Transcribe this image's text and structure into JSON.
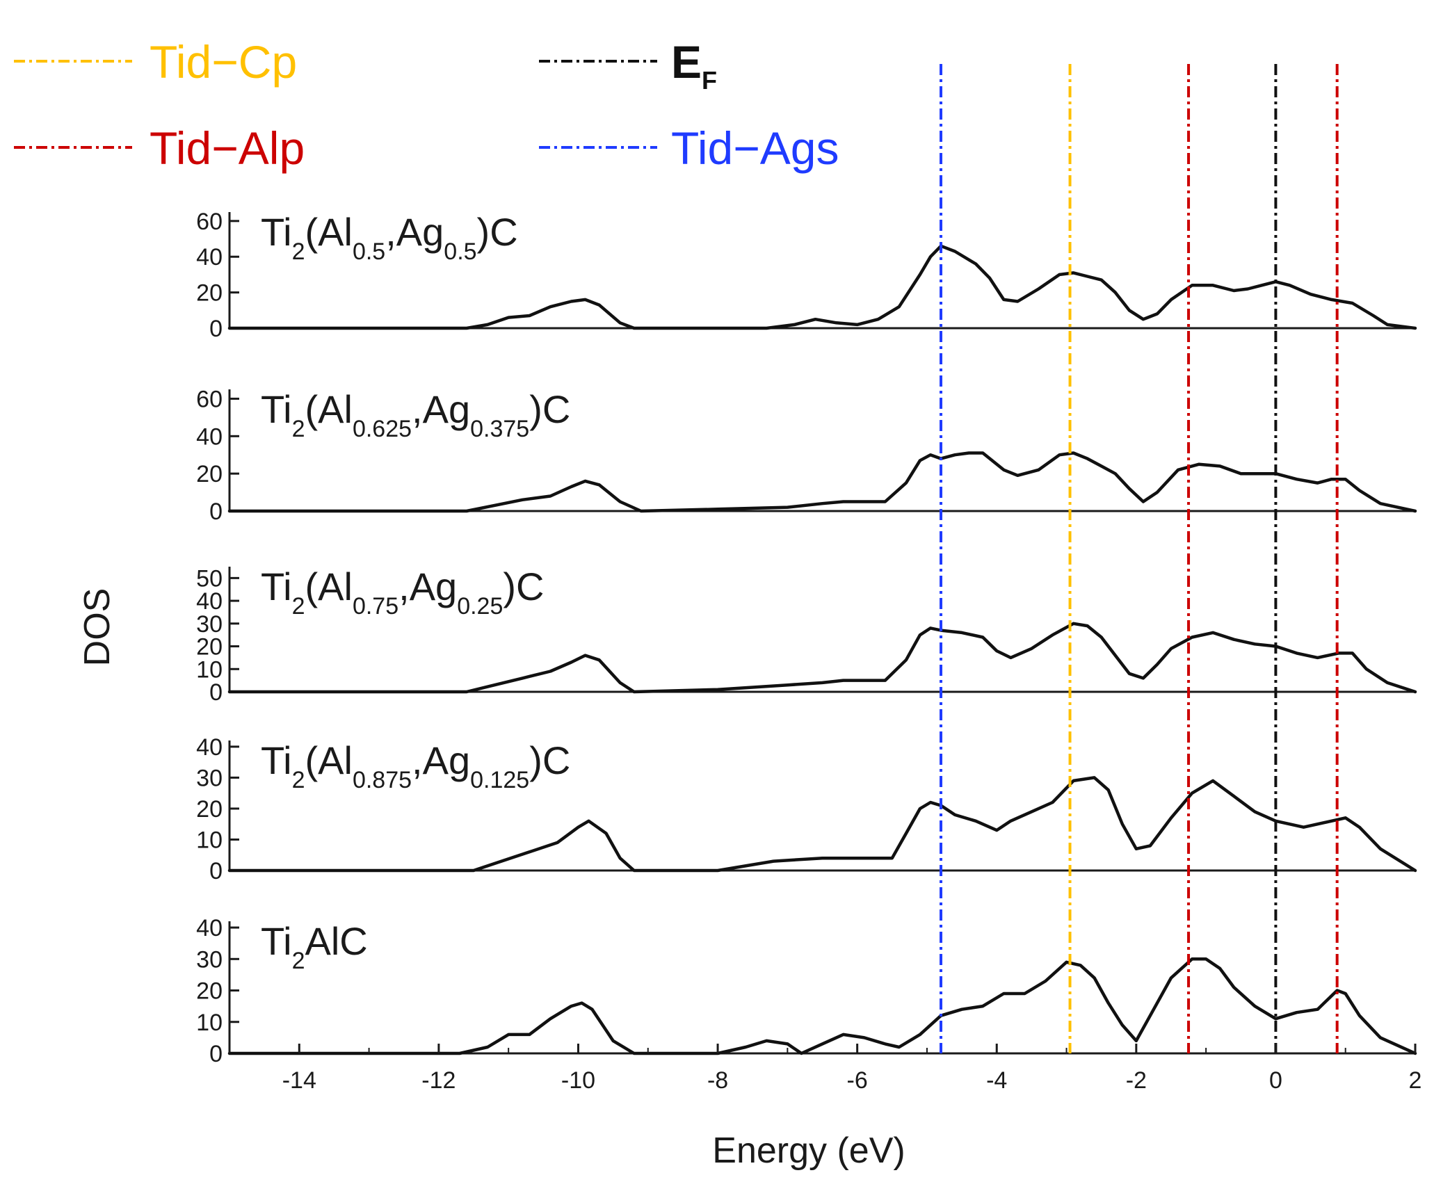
{
  "chart_data": {
    "type": "line",
    "xlabel": "Energy (eV)",
    "ylabel": "DOS",
    "xlim": [
      -15,
      2
    ],
    "xticks": [
      -14,
      -12,
      -10,
      -8,
      -6,
      -4,
      -2,
      0,
      2
    ],
    "xtick_labels": [
      "-14",
      "-12",
      "-10",
      "-8",
      "-6",
      "-4",
      "-2",
      "0",
      "2"
    ],
    "reference_lines": [
      {
        "name": "Tid−Ags",
        "color": "#1f3bff",
        "x": -4.8
      },
      {
        "name": "Tid−Cp",
        "color": "#ffc000",
        "x": -2.95
      },
      {
        "name": "Tid−Alp",
        "color": "#cc0000",
        "x": -1.25
      },
      {
        "name": "E",
        "sub": "F",
        "color": "#111111",
        "x": 0.0
      },
      {
        "name": "Tid−Alp",
        "color": "#cc0000",
        "x": 0.88
      }
    ],
    "legend": [
      {
        "label": "Tid−Cp",
        "sub": "",
        "color": "#ffc000"
      },
      {
        "label": "Tid−Alp",
        "sub": "",
        "color": "#cc0000"
      },
      {
        "label": "E",
        "sub": "F",
        "color": "#111111"
      },
      {
        "label": "Tid−Ags",
        "sub": "",
        "color": "#1f3bff"
      }
    ],
    "panels": [
      {
        "label_parts": [
          [
            "Ti",
            ""
          ],
          [
            "2",
            "sub"
          ],
          [
            "(Al",
            ""
          ],
          [
            "0.5",
            "sub"
          ],
          [
            ",Ag",
            ""
          ],
          [
            "0.5",
            "sub"
          ],
          [
            ")C",
            ""
          ]
        ],
        "ylim": [
          0,
          65
        ],
        "yticks": [
          0,
          20,
          40,
          60
        ],
        "ytick_labels": [
          "0",
          "20",
          "40",
          "60"
        ],
        "x": [
          -15,
          -11.6,
          -11.3,
          -11.0,
          -10.7,
          -10.4,
          -10.1,
          -9.9,
          -9.7,
          -9.4,
          -9.2,
          -7.3,
          -6.9,
          -6.6,
          -6.3,
          -6.0,
          -5.7,
          -5.4,
          -5.1,
          -4.95,
          -4.8,
          -4.6,
          -4.3,
          -4.1,
          -3.9,
          -3.7,
          -3.4,
          -3.1,
          -2.9,
          -2.7,
          -2.5,
          -2.3,
          -2.1,
          -1.9,
          -1.7,
          -1.5,
          -1.2,
          -0.9,
          -0.6,
          -0.4,
          -0.2,
          0.0,
          0.2,
          0.5,
          0.8,
          1.1,
          1.4,
          1.6,
          2.0
        ],
        "y": [
          0,
          0,
          2,
          6,
          7,
          12,
          15,
          16,
          13,
          3,
          0,
          0,
          2,
          5,
          3,
          2,
          5,
          12,
          30,
          40,
          46,
          43,
          36,
          28,
          16,
          15,
          22,
          30,
          31,
          29,
          27,
          20,
          10,
          5,
          8,
          16,
          24,
          24,
          21,
          22,
          24,
          26,
          24,
          19,
          16,
          14,
          7,
          2,
          0
        ]
      },
      {
        "label_parts": [
          [
            "Ti",
            ""
          ],
          [
            "2",
            "sub"
          ],
          [
            "(Al",
            ""
          ],
          [
            "0.625",
            "sub"
          ],
          [
            ",Ag",
            ""
          ],
          [
            "0.375",
            "sub"
          ],
          [
            ")C",
            ""
          ]
        ],
        "ylim": [
          0,
          65
        ],
        "yticks": [
          0,
          20,
          40,
          60
        ],
        "ytick_labels": [
          "0",
          "20",
          "40",
          "60"
        ],
        "x": [
          -15,
          -11.6,
          -11.2,
          -10.8,
          -10.4,
          -10.1,
          -9.9,
          -9.7,
          -9.4,
          -9.1,
          -8.0,
          -7.0,
          -6.5,
          -6.2,
          -5.6,
          -5.3,
          -5.1,
          -4.95,
          -4.8,
          -4.6,
          -4.4,
          -4.2,
          -3.9,
          -3.7,
          -3.4,
          -3.1,
          -2.9,
          -2.7,
          -2.5,
          -2.3,
          -2.1,
          -1.9,
          -1.7,
          -1.4,
          -1.1,
          -0.8,
          -0.5,
          -0.3,
          0.0,
          0.3,
          0.6,
          0.8,
          1.0,
          1.2,
          1.5,
          2.0
        ],
        "y": [
          0,
          0,
          3,
          6,
          8,
          13,
          16,
          14,
          5,
          0,
          1,
          2,
          4,
          5,
          5,
          15,
          27,
          30,
          28,
          30,
          31,
          31,
          22,
          19,
          22,
          30,
          31,
          28,
          24,
          20,
          12,
          5,
          10,
          22,
          25,
          24,
          20,
          20,
          20,
          17,
          15,
          17,
          17,
          11,
          4,
          0
        ]
      },
      {
        "label_parts": [
          [
            "Ti",
            ""
          ],
          [
            "2",
            "sub"
          ],
          [
            "(Al",
            ""
          ],
          [
            "0.75",
            "sub"
          ],
          [
            ",Ag",
            ""
          ],
          [
            "0.25",
            "sub"
          ],
          [
            ")C",
            ""
          ]
        ],
        "ylim": [
          0,
          55
        ],
        "yticks": [
          0,
          10,
          20,
          30,
          40,
          50
        ],
        "ytick_labels": [
          "0",
          "10",
          "20",
          "30",
          "40",
          "50"
        ],
        "x": [
          -15,
          -11.6,
          -11.2,
          -10.8,
          -10.4,
          -10.1,
          -9.9,
          -9.7,
          -9.4,
          -9.2,
          -8.0,
          -7.0,
          -6.5,
          -6.2,
          -5.6,
          -5.3,
          -5.1,
          -4.95,
          -4.8,
          -4.5,
          -4.2,
          -4.0,
          -3.8,
          -3.5,
          -3.2,
          -2.9,
          -2.7,
          -2.5,
          -2.3,
          -2.1,
          -1.9,
          -1.7,
          -1.5,
          -1.2,
          -0.9,
          -0.6,
          -0.3,
          0.0,
          0.3,
          0.6,
          0.9,
          1.1,
          1.3,
          1.6,
          2.0
        ],
        "y": [
          0,
          0,
          3,
          6,
          9,
          13,
          16,
          14,
          4,
          0,
          1,
          3,
          4,
          5,
          5,
          14,
          25,
          28,
          27,
          26,
          24,
          18,
          15,
          19,
          25,
          30,
          29,
          24,
          16,
          8,
          6,
          12,
          19,
          24,
          26,
          23,
          21,
          20,
          17,
          15,
          17,
          17,
          10,
          4,
          0
        ]
      },
      {
        "label_parts": [
          [
            "Ti",
            ""
          ],
          [
            "2",
            "sub"
          ],
          [
            "(Al",
            ""
          ],
          [
            "0.875",
            "sub"
          ],
          [
            ",Ag",
            ""
          ],
          [
            "0.125",
            "sub"
          ],
          [
            ")C",
            ""
          ]
        ],
        "ylim": [
          0,
          42
        ],
        "yticks": [
          0,
          10,
          20,
          30,
          40
        ],
        "ytick_labels": [
          "0",
          "10",
          "20",
          "30",
          "40"
        ],
        "x": [
          -15,
          -11.5,
          -11.1,
          -10.7,
          -10.3,
          -10.0,
          -9.85,
          -9.6,
          -9.4,
          -9.2,
          -8.0,
          -7.2,
          -6.5,
          -6.0,
          -5.5,
          -5.3,
          -5.1,
          -4.95,
          -4.8,
          -4.6,
          -4.3,
          -4.0,
          -3.8,
          -3.5,
          -3.2,
          -2.9,
          -2.6,
          -2.4,
          -2.2,
          -2.0,
          -1.8,
          -1.5,
          -1.2,
          -0.9,
          -0.6,
          -0.3,
          0.0,
          0.4,
          0.8,
          1.0,
          1.2,
          1.5,
          2.0
        ],
        "y": [
          0,
          0,
          3,
          6,
          9,
          14,
          16,
          12,
          4,
          0,
          0,
          3,
          4,
          4,
          4,
          12,
          20,
          22,
          21,
          18,
          16,
          13,
          16,
          19,
          22,
          29,
          30,
          26,
          15,
          7,
          8,
          17,
          25,
          29,
          24,
          19,
          16,
          14,
          16,
          17,
          14,
          7,
          0
        ]
      },
      {
        "label_parts": [
          [
            "Ti",
            ""
          ],
          [
            "2",
            "sub"
          ],
          [
            "AlC",
            ""
          ]
        ],
        "ylim": [
          0,
          42
        ],
        "yticks": [
          0,
          10,
          20,
          30,
          40
        ],
        "ytick_labels": [
          "0",
          "10",
          "20",
          "30",
          "40"
        ],
        "x": [
          -15,
          -11.7,
          -11.3,
          -11.0,
          -10.7,
          -10.4,
          -10.1,
          -9.95,
          -9.8,
          -9.5,
          -9.2,
          -8.0,
          -7.6,
          -7.3,
          -7.0,
          -6.8,
          -6.5,
          -6.2,
          -5.9,
          -5.6,
          -5.4,
          -5.1,
          -4.8,
          -4.5,
          -4.2,
          -3.9,
          -3.6,
          -3.3,
          -3.0,
          -2.8,
          -2.6,
          -2.4,
          -2.2,
          -2.0,
          -1.8,
          -1.5,
          -1.2,
          -1.0,
          -0.8,
          -0.6,
          -0.3,
          0.0,
          0.3,
          0.6,
          0.88,
          1.0,
          1.2,
          1.5,
          2.0
        ],
        "y": [
          0,
          0,
          2,
          6,
          6,
          11,
          15,
          16,
          14,
          4,
          0,
          0,
          2,
          4,
          3,
          0,
          3,
          6,
          5,
          3,
          2,
          6,
          12,
          14,
          15,
          19,
          19,
          23,
          29,
          28,
          24,
          16,
          9,
          4,
          12,
          24,
          30,
          30,
          27,
          21,
          15,
          11,
          13,
          14,
          20,
          19,
          12,
          5,
          0
        ]
      }
    ]
  }
}
